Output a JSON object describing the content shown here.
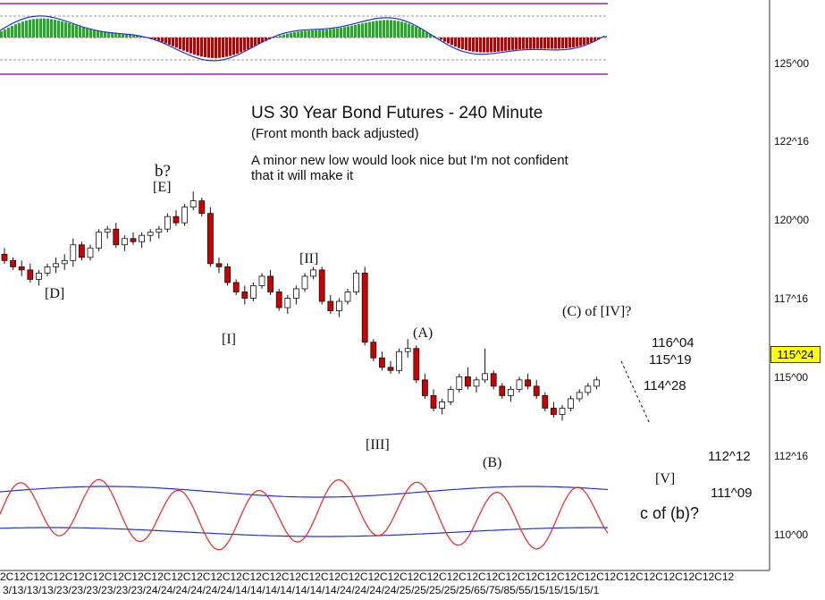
{
  "chart_data": {
    "type": "candlestick",
    "title": "US 30 Year Bond Futures - 240 Minute",
    "subtitle": "(Front month back adjusted)",
    "comment": [
      "A minor new low would look nice but I'm not confident",
      "that it will make it"
    ],
    "y_axis": {
      "ticks": [
        "125^00",
        "122^16",
        "120^00",
        "117^16",
        "115^00",
        "112^16",
        "110^00"
      ],
      "tick_values": [
        125.0,
        122.5,
        120.0,
        117.5,
        115.0,
        112.5,
        110.0
      ],
      "range": [
        109.5,
        126.8
      ]
    },
    "last_price": {
      "label": "115^24",
      "value": 115.75
    },
    "wave_labels": [
      {
        "text": "b?",
        "x": 33,
        "y": 120.8
      },
      {
        "text": "[E]",
        "x": 33,
        "y": 120.35
      },
      {
        "text": "[D]",
        "x": 9,
        "y": 117.7
      },
      {
        "text": "[II]",
        "x": 60,
        "y": 118.4
      },
      {
        "text": "[I]",
        "x": 45,
        "y": 116.3
      },
      {
        "text": "(A)",
        "x": 85,
        "y": 116.0
      },
      {
        "text": "[III]",
        "x": 75,
        "y": 113.0
      },
      {
        "text": "(B)",
        "x": 98,
        "y": 112.2
      },
      {
        "text": "(C) of [IV]?",
        "x": 121,
        "y": 116.9
      },
      {
        "text": "[V]",
        "x": 133,
        "y": 111.8
      },
      {
        "text": "c of (b)?",
        "x": 138,
        "y": 110.7
      }
    ],
    "levels": [
      {
        "label": "116^04",
        "value": 116.125,
        "x_start": 120,
        "x_end": 128
      },
      {
        "label": "115^19",
        "value": 115.6,
        "x_start": 118,
        "x_end": 127
      },
      {
        "label": "114^28",
        "value": 114.875,
        "x_start": 120,
        "x_end": 128
      },
      {
        "label": "112^12",
        "value": 112.375,
        "x_start": 120,
        "x_end": 141
      },
      {
        "label": "111^09",
        "value": 111.3,
        "x_start": 120,
        "x_end": 141
      }
    ],
    "projection": {
      "from": [
        125,
        115.5
      ],
      "to": [
        131,
        113.5
      ]
    },
    "ohlc": [
      [
        118.9,
        119.1,
        118.6,
        118.7
      ],
      [
        118.7,
        118.8,
        118.4,
        118.5
      ],
      [
        118.5,
        118.7,
        118.2,
        118.4
      ],
      [
        118.4,
        118.6,
        118.0,
        118.1
      ],
      [
        118.1,
        118.4,
        117.9,
        118.3
      ],
      [
        118.3,
        118.6,
        118.2,
        118.5
      ],
      [
        118.5,
        118.8,
        118.3,
        118.6
      ],
      [
        118.6,
        118.9,
        118.4,
        118.7
      ],
      [
        118.7,
        119.4,
        118.5,
        119.2
      ],
      [
        119.2,
        119.3,
        118.7,
        118.8
      ],
      [
        118.8,
        119.2,
        118.7,
        119.1
      ],
      [
        119.1,
        119.7,
        119.0,
        119.6
      ],
      [
        119.6,
        119.8,
        119.4,
        119.7
      ],
      [
        119.7,
        119.9,
        119.1,
        119.2
      ],
      [
        119.2,
        119.5,
        119.0,
        119.4
      ],
      [
        119.4,
        119.6,
        119.2,
        119.3
      ],
      [
        119.3,
        119.6,
        119.1,
        119.5
      ],
      [
        119.5,
        119.7,
        119.3,
        119.6
      ],
      [
        119.6,
        119.8,
        119.4,
        119.7
      ],
      [
        119.7,
        120.2,
        119.6,
        120.1
      ],
      [
        120.1,
        120.3,
        119.8,
        119.9
      ],
      [
        119.9,
        120.5,
        119.8,
        120.4
      ],
      [
        120.4,
        120.9,
        120.3,
        120.6
      ],
      [
        120.6,
        120.7,
        120.1,
        120.2
      ],
      [
        120.2,
        120.4,
        118.5,
        118.6
      ],
      [
        118.6,
        118.8,
        118.3,
        118.5
      ],
      [
        118.5,
        118.6,
        117.9,
        118.0
      ],
      [
        118.0,
        118.1,
        117.6,
        117.7
      ],
      [
        117.7,
        117.9,
        117.3,
        117.5
      ],
      [
        117.5,
        118.0,
        117.4,
        117.9
      ],
      [
        117.9,
        118.3,
        117.8,
        118.2
      ],
      [
        118.2,
        118.4,
        117.6,
        117.7
      ],
      [
        117.7,
        117.8,
        117.1,
        117.2
      ],
      [
        117.2,
        117.6,
        117.0,
        117.5
      ],
      [
        117.5,
        117.9,
        117.3,
        117.8
      ],
      [
        117.8,
        118.3,
        117.7,
        118.2
      ],
      [
        118.2,
        118.5,
        118.1,
        118.4
      ],
      [
        118.4,
        118.5,
        117.3,
        117.4
      ],
      [
        117.4,
        117.6,
        117.0,
        117.1
      ],
      [
        117.1,
        117.5,
        116.9,
        117.4
      ],
      [
        117.4,
        117.8,
        117.3,
        117.7
      ],
      [
        117.7,
        118.4,
        117.6,
        118.3
      ],
      [
        118.3,
        118.5,
        116.0,
        116.1
      ],
      [
        116.1,
        116.2,
        115.5,
        115.6
      ],
      [
        115.6,
        115.8,
        115.2,
        115.3
      ],
      [
        115.3,
        115.5,
        115.1,
        115.2
      ],
      [
        115.2,
        115.9,
        115.1,
        115.8
      ],
      [
        115.8,
        116.2,
        115.6,
        115.9
      ],
      [
        115.9,
        116.0,
        114.8,
        114.9
      ],
      [
        114.9,
        115.1,
        114.3,
        114.4
      ],
      [
        114.4,
        114.6,
        113.9,
        114.0
      ],
      [
        114.0,
        114.3,
        113.8,
        114.2
      ],
      [
        114.2,
        114.7,
        114.1,
        114.6
      ],
      [
        114.6,
        115.1,
        114.5,
        115.0
      ],
      [
        115.0,
        115.3,
        114.6,
        114.7
      ],
      [
        114.7,
        115.0,
        114.5,
        114.9
      ],
      [
        114.9,
        115.9,
        114.8,
        115.1
      ],
      [
        115.1,
        115.2,
        114.6,
        114.7
      ],
      [
        114.7,
        114.8,
        114.3,
        114.4
      ],
      [
        114.4,
        114.7,
        114.2,
        114.6
      ],
      [
        114.6,
        115.0,
        114.5,
        114.9
      ],
      [
        114.9,
        115.1,
        114.6,
        114.7
      ],
      [
        114.7,
        114.9,
        114.3,
        114.4
      ],
      [
        114.4,
        114.5,
        113.9,
        114.0
      ],
      [
        114.0,
        114.2,
        113.7,
        113.8
      ],
      [
        113.8,
        114.1,
        113.6,
        114.0
      ],
      [
        114.0,
        114.4,
        113.9,
        114.3
      ],
      [
        114.3,
        114.6,
        114.2,
        114.5
      ],
      [
        114.5,
        114.8,
        114.4,
        114.7
      ],
      [
        114.7,
        115.0,
        114.6,
        114.9
      ]
    ],
    "indicator_top": {
      "type": "histogram",
      "midline": 0,
      "range": [
        -3,
        3
      ]
    },
    "indicator_bottom": {
      "type": "oscillator-bands",
      "range": [
        0,
        100
      ]
    },
    "x_axis": {
      "tick_text_top": "2C12C12C12C12C12C12C12C12C12C12C12C12C12C12C12C12C12C12C12C12C12C12C12C12C12C12C12C12C12C12C12C12C12C12C12C12C12",
      "tick_text_bottom": "3/13/13/13/23/23/23/23/23/23/24/24/24/24/24/24/14/14/14/14/14/14/14/24/24/24/24/25/25/25/25/25/65/75/85/55/15/15/15/15/1"
    }
  }
}
